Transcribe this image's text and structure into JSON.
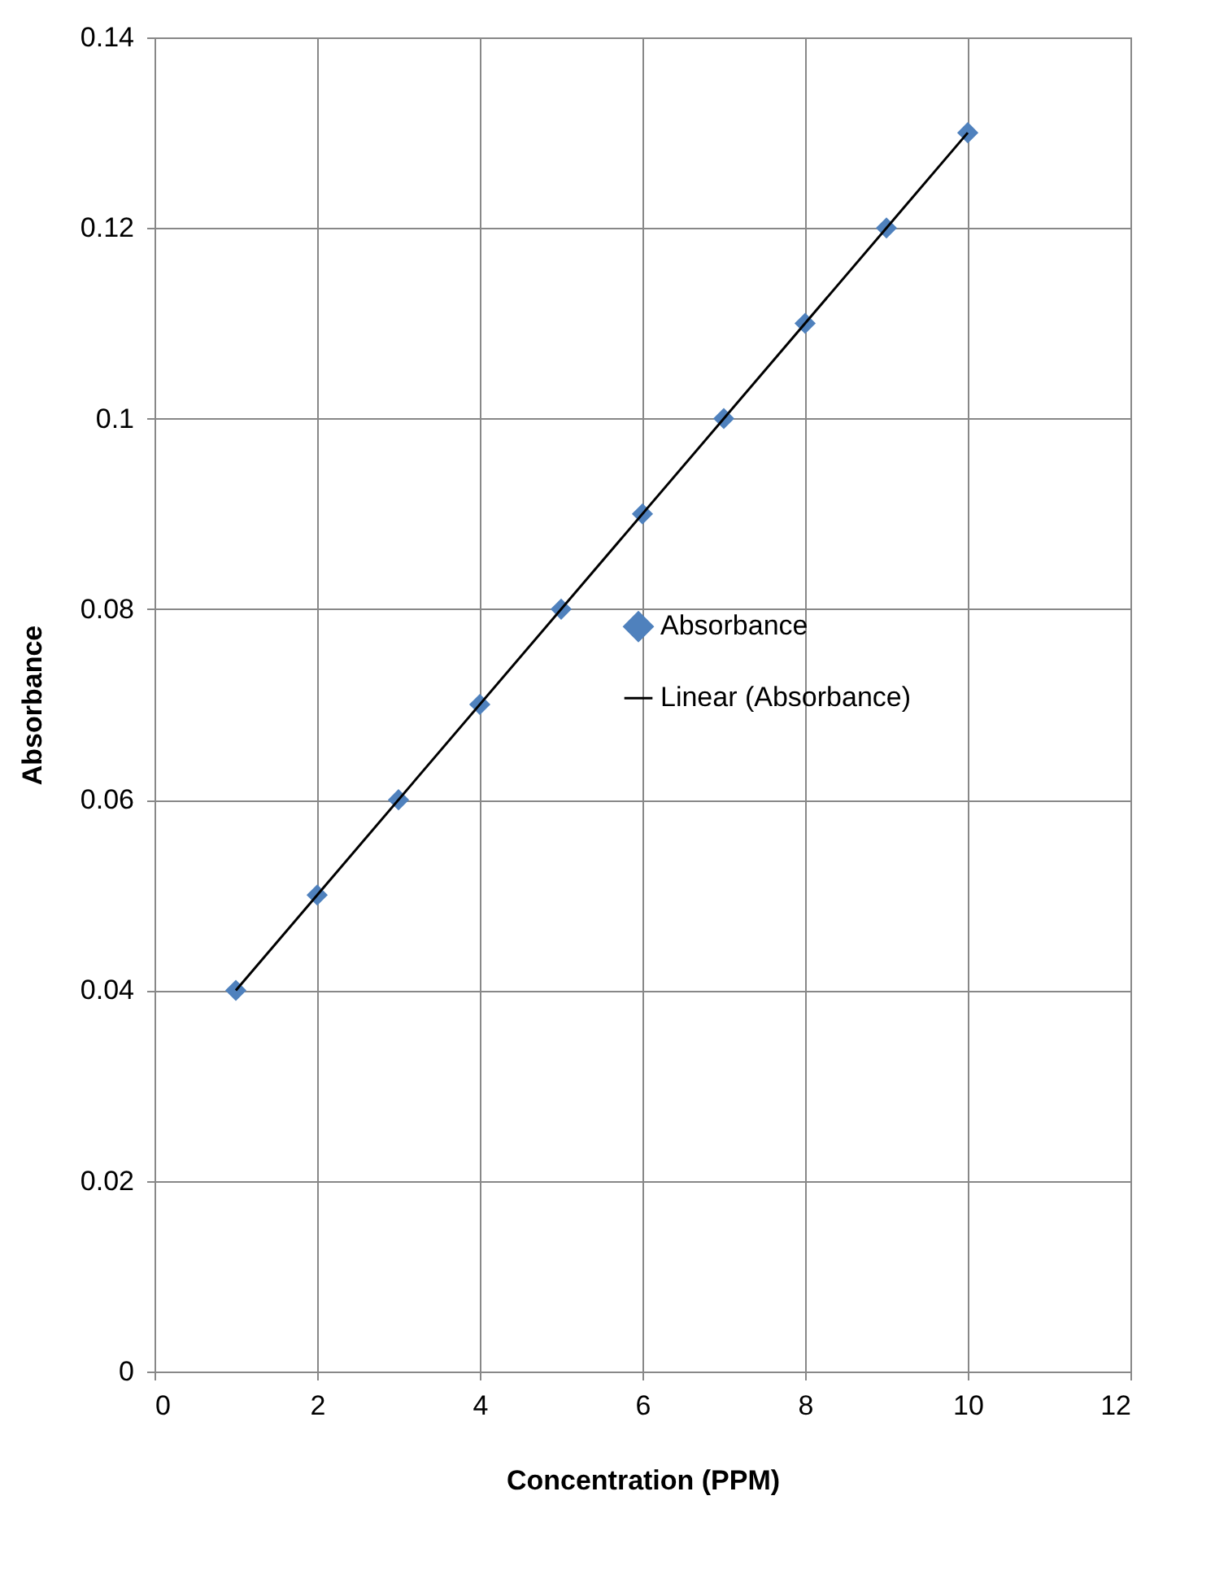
{
  "chart_data": {
    "type": "scatter",
    "xlabel": "Concentration (PPM)",
    "ylabel": "Absorbance",
    "x": [
      1,
      2,
      3,
      4,
      5,
      6,
      7,
      8,
      9,
      10
    ],
    "series": [
      {
        "name": "Absorbance",
        "color": "#4f81bd",
        "values": [
          0.04,
          0.05,
          0.06,
          0.07,
          0.08,
          0.09,
          0.1,
          0.11,
          0.12,
          0.13
        ],
        "marker": "diamond"
      },
      {
        "name": "Linear (Absorbance)",
        "type": "line",
        "color": "#000000",
        "x": [
          1,
          10
        ],
        "values": [
          0.04,
          0.13
        ],
        "line_style": "solid"
      }
    ],
    "xlim": [
      0,
      12
    ],
    "xticks": [
      0,
      2,
      4,
      6,
      8,
      10,
      12
    ],
    "ylim": [
      0,
      0.14
    ],
    "yticks": [
      0,
      0.02,
      0.04,
      0.06,
      0.08,
      0.1,
      0.12,
      0.14
    ],
    "grid": true,
    "legend": "right"
  }
}
